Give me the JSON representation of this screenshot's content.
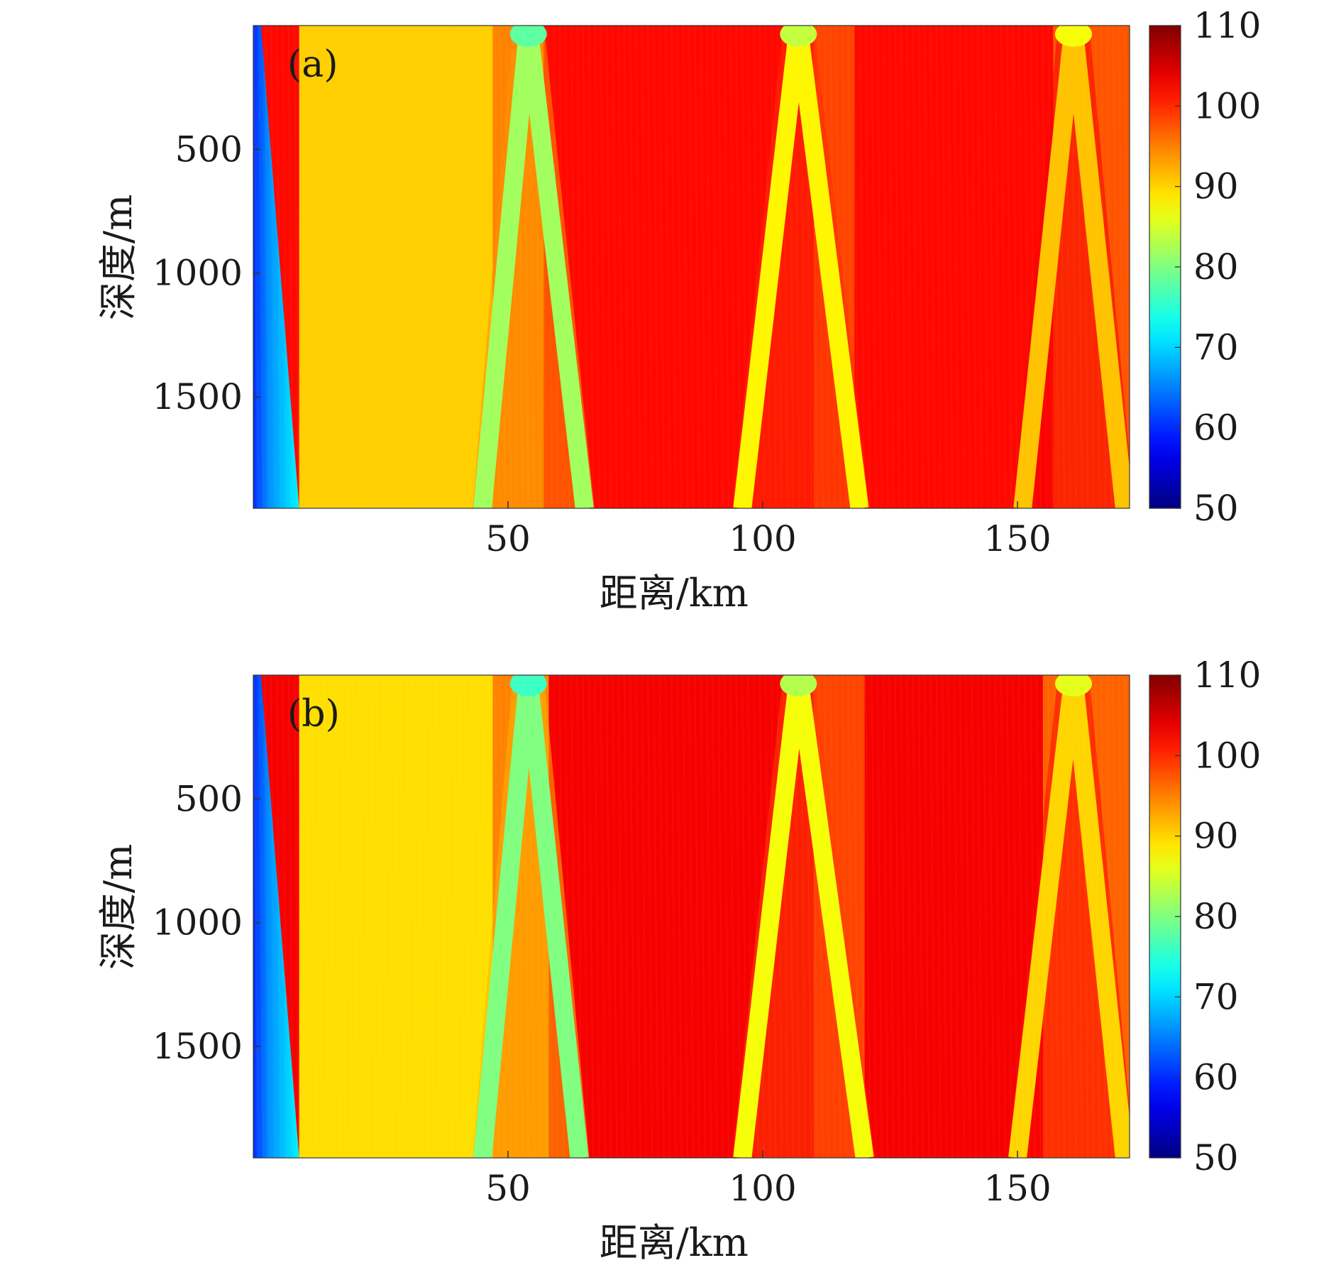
{
  "chart_data": [
    {
      "type": "heatmap",
      "panel_label": "(a)",
      "xlabel": "距离/km",
      "ylabel": "深度/m",
      "xlim": [
        0,
        172
      ],
      "ylim": [
        0,
        1950
      ],
      "y_reversed": true,
      "xticks": [
        50,
        100,
        150
      ],
      "yticks": [
        500,
        1000,
        1500
      ],
      "colorbar": {
        "min": 50,
        "max": 110,
        "ticks": [
          110,
          100,
          90,
          80,
          70,
          60,
          50
        ],
        "colormap": "jet"
      },
      "background_level": 102,
      "near_field": {
        "x_at_surface_km": 1.5,
        "x_at_bottom_km": 9,
        "level_min": 60,
        "level_max": 72
      },
      "bands": [
        {
          "x_start_km": 9,
          "x_end_km": 47,
          "level": 89
        },
        {
          "x_start_km": 47,
          "x_end_km": 57,
          "level": 94
        },
        {
          "x_start_km": 110,
          "x_end_km": 118,
          "level": 98
        },
        {
          "x_start_km": 157,
          "x_end_km": 172,
          "level": 97
        }
      ],
      "convergence_zones": [
        {
          "x_surface_km": 54,
          "x_left_bottom_km": 45,
          "x_right_bottom_km": 65,
          "level": 82
        },
        {
          "x_surface_km": 107,
          "x_left_bottom_km": 96,
          "x_right_bottom_km": 119,
          "level": 88
        },
        {
          "x_surface_km": 161,
          "x_left_bottom_km": 151,
          "x_right_bottom_km": 171,
          "level": 91
        }
      ]
    },
    {
      "type": "heatmap",
      "panel_label": "(b)",
      "xlabel": "距离/km",
      "ylabel": "深度/m",
      "xlim": [
        0,
        172
      ],
      "ylim": [
        0,
        1950
      ],
      "y_reversed": true,
      "xticks": [
        50,
        100,
        150
      ],
      "yticks": [
        500,
        1000,
        1500
      ],
      "colorbar": {
        "min": 50,
        "max": 110,
        "ticks": [
          110,
          100,
          90,
          80,
          70,
          60,
          50
        ],
        "colormap": "jet"
      },
      "background_level": 103,
      "near_field": {
        "x_at_surface_km": 1.5,
        "x_at_bottom_km": 9,
        "level_min": 60,
        "level_max": 72
      },
      "bands": [
        {
          "x_start_km": 9,
          "x_end_km": 47,
          "level": 88
        },
        {
          "x_start_km": 47,
          "x_end_km": 58,
          "level": 94
        },
        {
          "x_start_km": 110,
          "x_end_km": 120,
          "level": 98
        },
        {
          "x_start_km": 155,
          "x_end_km": 172,
          "level": 96
        }
      ],
      "convergence_zones": [
        {
          "x_surface_km": 54,
          "x_left_bottom_km": 45,
          "x_right_bottom_km": 64,
          "level": 80
        },
        {
          "x_surface_km": 107,
          "x_left_bottom_km": 96,
          "x_right_bottom_km": 120,
          "level": 87
        },
        {
          "x_surface_km": 161,
          "x_left_bottom_km": 150,
          "x_right_bottom_km": 171,
          "level": 90
        }
      ]
    }
  ]
}
